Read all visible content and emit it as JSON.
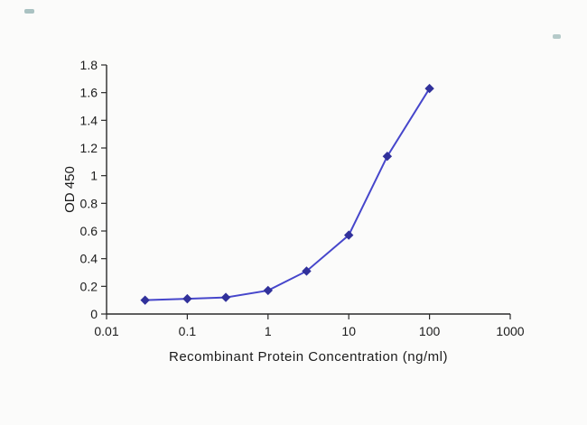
{
  "page": {
    "background": "#fbfbfa"
  },
  "chart_data": {
    "type": "line",
    "title": "",
    "xlabel": "Recombinant Protein Concentration (ng/ml)",
    "ylabel": "OD 450",
    "x_scale": "log",
    "xlim": [
      0.01,
      1000
    ],
    "ylim": [
      0,
      1.8
    ],
    "x": [
      0.03,
      0.1,
      0.3,
      1,
      3,
      10,
      30,
      100
    ],
    "values": [
      0.1,
      0.11,
      0.12,
      0.17,
      0.31,
      0.57,
      1.14,
      1.63
    ],
    "x_ticks": [
      0.01,
      0.1,
      1,
      10,
      100,
      1000
    ],
    "x_tick_labels": [
      "0.01",
      "0.1",
      "1",
      "10",
      "100",
      "1000"
    ],
    "y_ticks": [
      0,
      0.2,
      0.4,
      0.6,
      0.8,
      1,
      1.2,
      1.4,
      1.6,
      1.8
    ],
    "y_tick_labels": [
      "0",
      "0.2",
      "0.4",
      "0.6",
      "0.8",
      "1",
      "1.2",
      "1.4",
      "1.6",
      "1.8"
    ],
    "grid": false,
    "legend": "none",
    "marker": "diamond",
    "line_color": "#4646cb",
    "marker_color": "#31319b",
    "axis_color": "#2a2a2a",
    "text_color": "#1b1b1b"
  }
}
